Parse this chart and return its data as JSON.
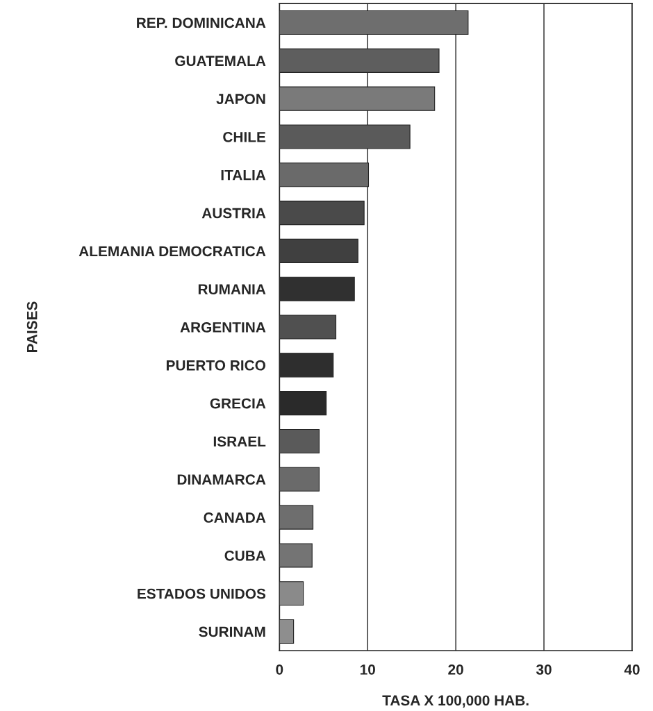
{
  "chart_data": {
    "type": "bar",
    "orientation": "horizontal",
    "xlabel": "TASA X 100,000 HAB.",
    "ylabel": "PAISES",
    "categories": [
      "REP. DOMINICANA",
      "GUATEMALA",
      "JAPON",
      "CHILE",
      "ITALIA",
      "AUSTRIA",
      "ALEMANIA DEMOCRATICA",
      "RUMANIA",
      "ARGENTINA",
      "PUERTO RICO",
      "GRECIA",
      "ISRAEL",
      "DINAMARCA",
      "CANADA",
      "CUBA",
      "ESTADOS UNIDOS",
      "SURINAM"
    ],
    "values": [
      21.4,
      18.1,
      17.6,
      14.8,
      10.1,
      9.6,
      8.9,
      8.5,
      6.4,
      6.1,
      5.3,
      4.5,
      4.5,
      3.8,
      3.7,
      2.7,
      1.6
    ],
    "colors": [
      "#6e6e6e",
      "#5e5e5e",
      "#7a7a7a",
      "#5a5a5a",
      "#6a6a6a",
      "#4a4a4a",
      "#404040",
      "#303030",
      "#505050",
      "#2e2e2e",
      "#2a2a2a",
      "#5a5a5a",
      "#6a6a6a",
      "#6e6e6e",
      "#747474",
      "#8a8a8a",
      "#8e8e8e"
    ],
    "xlim": [
      0,
      40
    ],
    "xticks": [
      0,
      10,
      20,
      30,
      40
    ],
    "grid": "x"
  }
}
